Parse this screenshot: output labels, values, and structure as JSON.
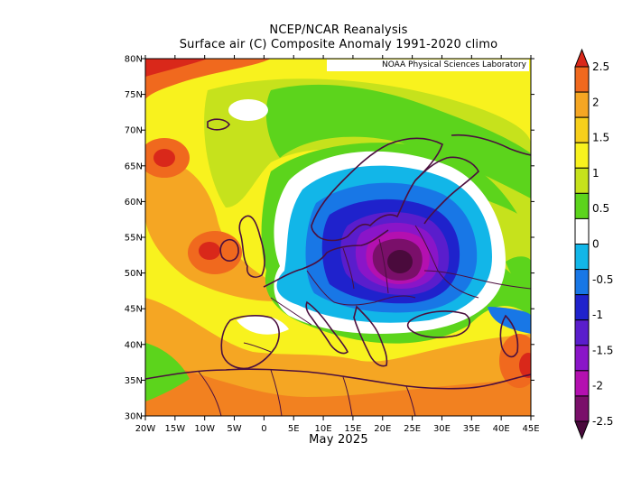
{
  "title": "NCEP/NCAR Reanalysis",
  "subtitle": "Surface air (C) Composite Anomaly 1991-2020 climo",
  "xlabel": "May 2025",
  "credit": "NOAA Physical Sciences Laboratory",
  "map": {
    "lon_range": [
      -20,
      45
    ],
    "lat_range": [
      30,
      80
    ],
    "lon_ticks": [
      "20W",
      "15W",
      "10W",
      "5W",
      "0",
      "5E",
      "10E",
      "15E",
      "20E",
      "25E",
      "30E",
      "35E",
      "40E",
      "45E"
    ],
    "lat_ticks": [
      "30N",
      "35N",
      "40N",
      "45N",
      "50N",
      "55N",
      "60N",
      "65N",
      "70N",
      "75N",
      "80N"
    ]
  },
  "colorbar": {
    "labels": [
      "2.5",
      "2",
      "1.5",
      "1",
      "0.5",
      "0",
      "-0.5",
      "-1",
      "-1.5",
      "-2",
      "-2.5"
    ],
    "colors": [
      "#d9281a",
      "#f0691e",
      "#f5a623",
      "#f7cf1b",
      "#f8f21e",
      "#c6e21c",
      "#5cd41c",
      "#ffffff",
      "#12b6e8",
      "#1877e6",
      "#1f22cc",
      "#5a1dcc",
      "#8a15c8",
      "#b410b0",
      "#7a0f6a",
      "#4a0a3c"
    ]
  }
}
